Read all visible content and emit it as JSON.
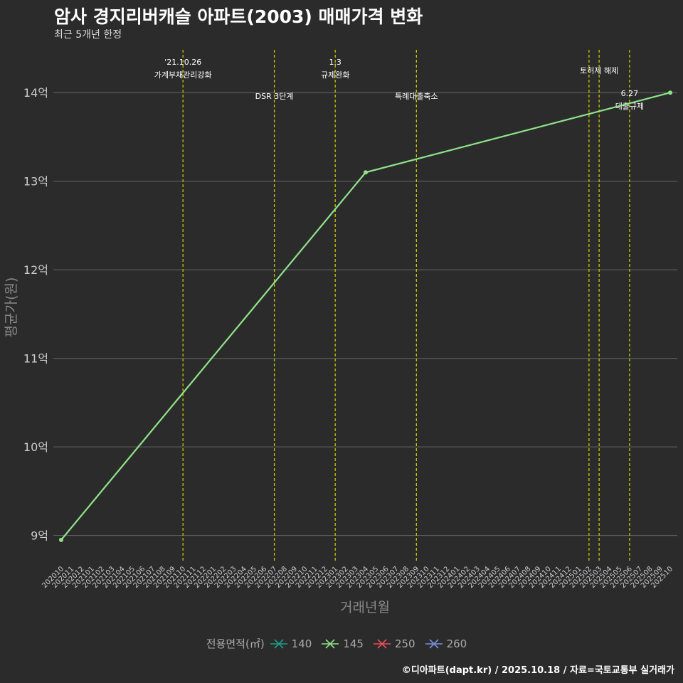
{
  "title": "암사 경지리버캐슬 아파트(2003) 매매가격 변화",
  "subtitle": "최근 5개년 한정",
  "footer": "©디아파트(dapt.kr) / 2025.10.18 / 자료=국토교통부 실거래가",
  "chart_data": {
    "type": "line",
    "title": "암사 경지리버캐슬 아파트(2003) 매매가격 변화",
    "subtitle": "최근 5개년 한정",
    "xlabel": "거래년월",
    "ylabel": "평균가(원)",
    "ylim": [
      8.7,
      14.5
    ],
    "yticks": [
      {
        "value": 9,
        "label": "9억"
      },
      {
        "value": 10,
        "label": "10억"
      },
      {
        "value": 11,
        "label": "11억"
      },
      {
        "value": 12,
        "label": "12억"
      },
      {
        "value": 13,
        "label": "13억"
      },
      {
        "value": 14,
        "label": "14억"
      }
    ],
    "x_categories": [
      "202010",
      "202011",
      "202012",
      "202101",
      "202102",
      "202103",
      "202104",
      "202105",
      "202106",
      "202107",
      "202108",
      "202109",
      "202110",
      "202111",
      "202112",
      "202201",
      "202202",
      "202203",
      "202204",
      "202205",
      "202206",
      "202207",
      "202208",
      "202209",
      "202210",
      "202211",
      "202212",
      "202301",
      "202302",
      "202303",
      "202304",
      "202305",
      "202306",
      "202307",
      "202308",
      "202309",
      "202310",
      "202311",
      "202312",
      "202401",
      "202402",
      "202403",
      "202404",
      "202405",
      "202406",
      "202407",
      "202408",
      "202409",
      "202410",
      "202411",
      "202412",
      "202501",
      "202502",
      "202503",
      "202504",
      "202505",
      "202506",
      "202507",
      "202508",
      "202509",
      "202510"
    ],
    "legend_title": "전용면적(㎡)",
    "series": [
      {
        "name": "140",
        "color": "#1f9e89",
        "points": []
      },
      {
        "name": "145",
        "color": "#8fe388",
        "points": [
          {
            "x": "202010",
            "y": 8.95
          },
          {
            "x": "202304",
            "y": 13.1
          },
          {
            "x": "202510",
            "y": 14.0
          }
        ]
      },
      {
        "name": "250",
        "color": "#e8505b",
        "points": []
      },
      {
        "name": "260",
        "color": "#7b8fe0",
        "points": []
      }
    ],
    "events": [
      {
        "x": "202110",
        "lines": [
          "'21.10.26",
          "가계부채관리강화"
        ],
        "level": "top"
      },
      {
        "x": "202207",
        "lines": [
          "DSR 3단계"
        ],
        "level": "low"
      },
      {
        "x": "202301",
        "lines": [
          "1.3",
          "규제완화"
        ],
        "level": "top"
      },
      {
        "x": "202309",
        "lines": [
          "특례대출축소"
        ],
        "level": "low"
      },
      {
        "x": "202502",
        "lines": [],
        "level": "top"
      },
      {
        "x": "202503",
        "lines": [
          "토허제 해제"
        ],
        "level": "mid"
      },
      {
        "x": "202506",
        "lines": [
          "6.27",
          "대출규제"
        ],
        "level": "low"
      }
    ]
  }
}
